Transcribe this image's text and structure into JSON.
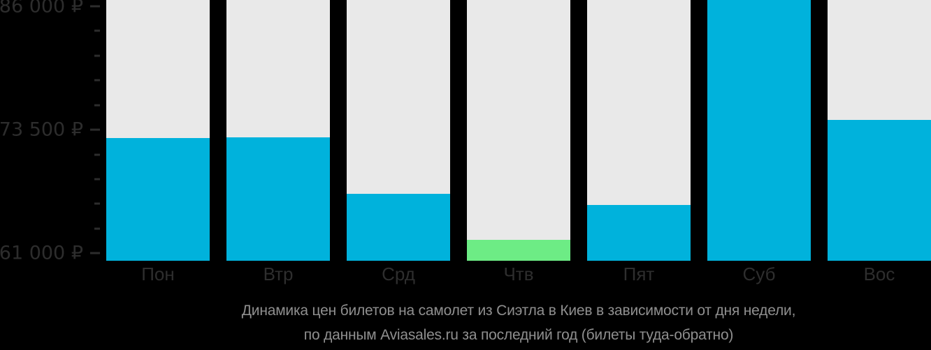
{
  "page": {
    "background_color": "#000000"
  },
  "chart_data": {
    "type": "bar",
    "title_lines": [
      "Динамика цен билетов на самолет из Сиэтла в Киев в зависимости от дня недели,",
      "по данным Aviasales.ru за последний год (билеты туда-обратно)"
    ],
    "categories": [
      "Пон",
      "Втр",
      "Срд",
      "Чтв",
      "Пят",
      "Суб",
      "Вос"
    ],
    "values": [
      72700,
      72750,
      67000,
      62350,
      65900,
      86700,
      74500
    ],
    "note": "Суб bar is clipped at the top of the plot (value at or above the 86 000 ₽ axis maximum); Чтв is the cheapest day and is highlighted green",
    "highlight_index": 3,
    "bar_color_default": "#00B2DC",
    "bar_color_highlight": "#6DEC85",
    "column_bg_color": "#E9E9E9",
    "legend": null,
    "grid": false,
    "y_axis": {
      "unit": "₽",
      "major_ticks": [
        {
          "value": 86000,
          "label": "86 000 ₽"
        },
        {
          "value": 73500,
          "label": "73 500 ₽"
        },
        {
          "value": 61000,
          "label": "61 000 ₽"
        }
      ],
      "minor_ticks": [
        83500,
        81000,
        78500,
        76000,
        71000,
        68500,
        66000,
        63500
      ],
      "value_top": 86635,
      "value_baseline": 60250
    },
    "text_colors": {
      "axis_labels": "#2d2d2d",
      "x_labels": "#2e2e2e",
      "caption": "#8f8f8f"
    }
  }
}
